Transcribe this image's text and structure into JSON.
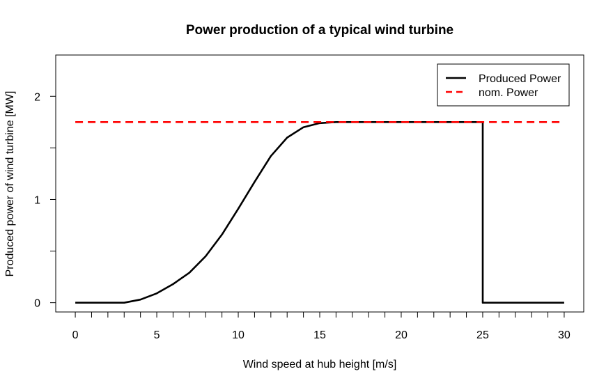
{
  "chart_data": {
    "type": "line",
    "title": "Power production of a typical wind turbine",
    "xlabel": "Wind speed at hub height [m/s]",
    "ylabel": "Produced power of wind turbine [MW]",
    "xlim": [
      -1.2,
      31.2
    ],
    "ylim": [
      -0.09,
      2.4
    ],
    "x_ticks": [
      0,
      5,
      10,
      15,
      20,
      25,
      30
    ],
    "x_minor_ticks": [
      1,
      2,
      3,
      4,
      6,
      7,
      8,
      9,
      11,
      12,
      13,
      14,
      16,
      17,
      18,
      19,
      21,
      22,
      23,
      24,
      26,
      27,
      28,
      29
    ],
    "y_ticks": [
      0,
      1,
      2
    ],
    "y_minor_ticks": [
      0.5,
      1.5
    ],
    "grid": false,
    "legend_position": "top-right",
    "series": [
      {
        "name": "Produced Power",
        "color": "#000000",
        "style": "solid",
        "x": [
          0,
          1,
          2,
          3,
          4,
          5,
          6,
          7,
          8,
          9,
          10,
          11,
          12,
          13,
          14,
          15,
          16,
          17,
          18,
          19,
          20,
          21,
          22,
          23,
          24,
          25,
          25,
          26,
          27,
          28,
          29,
          30
        ],
        "y": [
          0,
          0,
          0,
          0,
          0.03,
          0.09,
          0.18,
          0.29,
          0.45,
          0.66,
          0.91,
          1.17,
          1.42,
          1.6,
          1.7,
          1.74,
          1.75,
          1.75,
          1.75,
          1.75,
          1.75,
          1.75,
          1.75,
          1.75,
          1.75,
          1.75,
          0,
          0,
          0,
          0,
          0,
          0
        ]
      },
      {
        "name": "nom. Power",
        "color": "#ff0000",
        "style": "dashed",
        "x": [
          0,
          30
        ],
        "y": [
          1.75,
          1.75
        ]
      }
    ]
  }
}
